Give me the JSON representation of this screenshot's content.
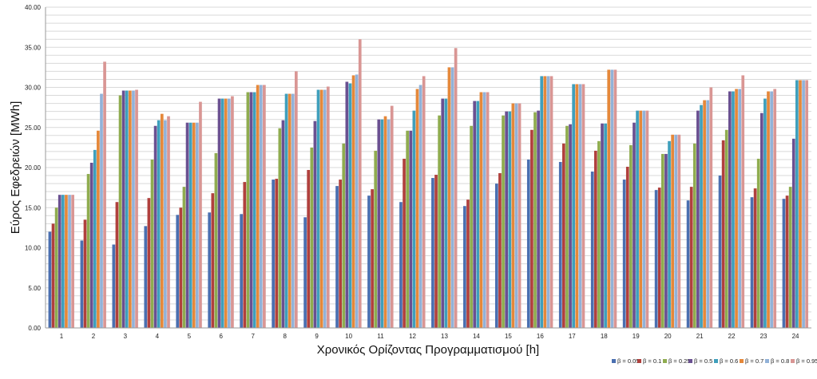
{
  "chart_data": {
    "type": "bar",
    "xlabel": "Χρονικός Ορίζοντας Προγραμματισμού [h]",
    "ylabel": "Εύρος Εφεδρειών [MWh]",
    "ylim": [
      0,
      40
    ],
    "yticks": [
      "0.00",
      "5.00",
      "10.00",
      "15.00",
      "20.00",
      "25.00",
      "30.00",
      "35.00",
      "40.00"
    ],
    "grid": true,
    "legend_position": "bottom-right",
    "categories": [
      "1",
      "2",
      "3",
      "4",
      "5",
      "6",
      "7",
      "8",
      "9",
      "10",
      "11",
      "12",
      "13",
      "14",
      "15",
      "16",
      "17",
      "18",
      "19",
      "20",
      "21",
      "22",
      "23",
      "24"
    ],
    "series": [
      {
        "name": "β = 0.05",
        "color": "#4a6fb0",
        "values": [
          12.0,
          10.9,
          10.4,
          12.7,
          14.1,
          14.4,
          14.2,
          18.5,
          13.8,
          17.7,
          16.5,
          15.7,
          18.7,
          15.2,
          18.0,
          21.0,
          20.7,
          19.5,
          18.5,
          17.2,
          15.9,
          19.0,
          16.3,
          16.1
        ]
      },
      {
        "name": "β = 0.1",
        "color": "#b0403d",
        "values": [
          13.0,
          13.5,
          15.7,
          16.2,
          15.0,
          16.8,
          18.2,
          18.6,
          19.7,
          18.5,
          17.3,
          21.1,
          19.1,
          16.0,
          19.3,
          24.7,
          23.0,
          22.1,
          20.1,
          17.5,
          17.6,
          23.4,
          17.4,
          16.5
        ]
      },
      {
        "name": "β = 0.25",
        "color": "#8fac4f",
        "values": [
          15.0,
          19.2,
          29.0,
          21.0,
          17.6,
          21.8,
          29.4,
          24.9,
          22.5,
          23.0,
          22.1,
          24.6,
          26.5,
          25.2,
          26.5,
          26.9,
          25.2,
          23.3,
          22.8,
          21.7,
          23.0,
          24.7,
          21.1,
          17.6
        ]
      },
      {
        "name": "β = 0.5",
        "color": "#6a5091",
        "values": [
          16.6,
          20.6,
          29.6,
          25.2,
          25.6,
          28.6,
          29.4,
          25.9,
          25.8,
          30.7,
          26.0,
          24.6,
          28.6,
          28.3,
          27.0,
          27.1,
          25.4,
          25.5,
          25.6,
          21.7,
          27.1,
          29.5,
          26.8,
          23.6
        ]
      },
      {
        "name": "β = 0.6",
        "color": "#3f9fbc",
        "values": [
          16.6,
          22.2,
          29.6,
          25.9,
          25.6,
          28.6,
          29.4,
          29.2,
          29.7,
          30.5,
          26.0,
          27.1,
          28.6,
          28.3,
          27.0,
          31.4,
          30.4,
          25.5,
          27.1,
          23.3,
          27.8,
          29.5,
          28.6,
          30.9
        ]
      },
      {
        "name": "β = 0.7",
        "color": "#e5883a",
        "values": [
          16.6,
          24.6,
          29.6,
          26.7,
          25.6,
          28.6,
          30.3,
          29.2,
          29.7,
          31.5,
          26.4,
          29.8,
          32.5,
          29.4,
          28.0,
          31.4,
          30.4,
          32.2,
          27.1,
          24.1,
          28.4,
          29.8,
          29.5,
          30.9
        ]
      },
      {
        "name": "β = 0.8",
        "color": "#92b2d8",
        "values": [
          16.6,
          29.2,
          29.6,
          25.9,
          25.6,
          28.6,
          30.3,
          29.2,
          29.7,
          31.6,
          26.0,
          30.3,
          32.5,
          29.4,
          28.0,
          31.4,
          30.4,
          32.2,
          27.1,
          24.1,
          28.4,
          29.8,
          29.5,
          30.9
        ]
      },
      {
        "name": "β = 0.95",
        "color": "#d99694",
        "values": [
          16.6,
          33.2,
          29.7,
          26.4,
          28.2,
          28.9,
          30.3,
          32.0,
          30.1,
          36.0,
          27.7,
          31.4,
          34.9,
          29.4,
          28.0,
          31.4,
          30.4,
          32.2,
          27.1,
          24.1,
          30.0,
          31.5,
          29.8,
          30.9
        ]
      }
    ]
  }
}
